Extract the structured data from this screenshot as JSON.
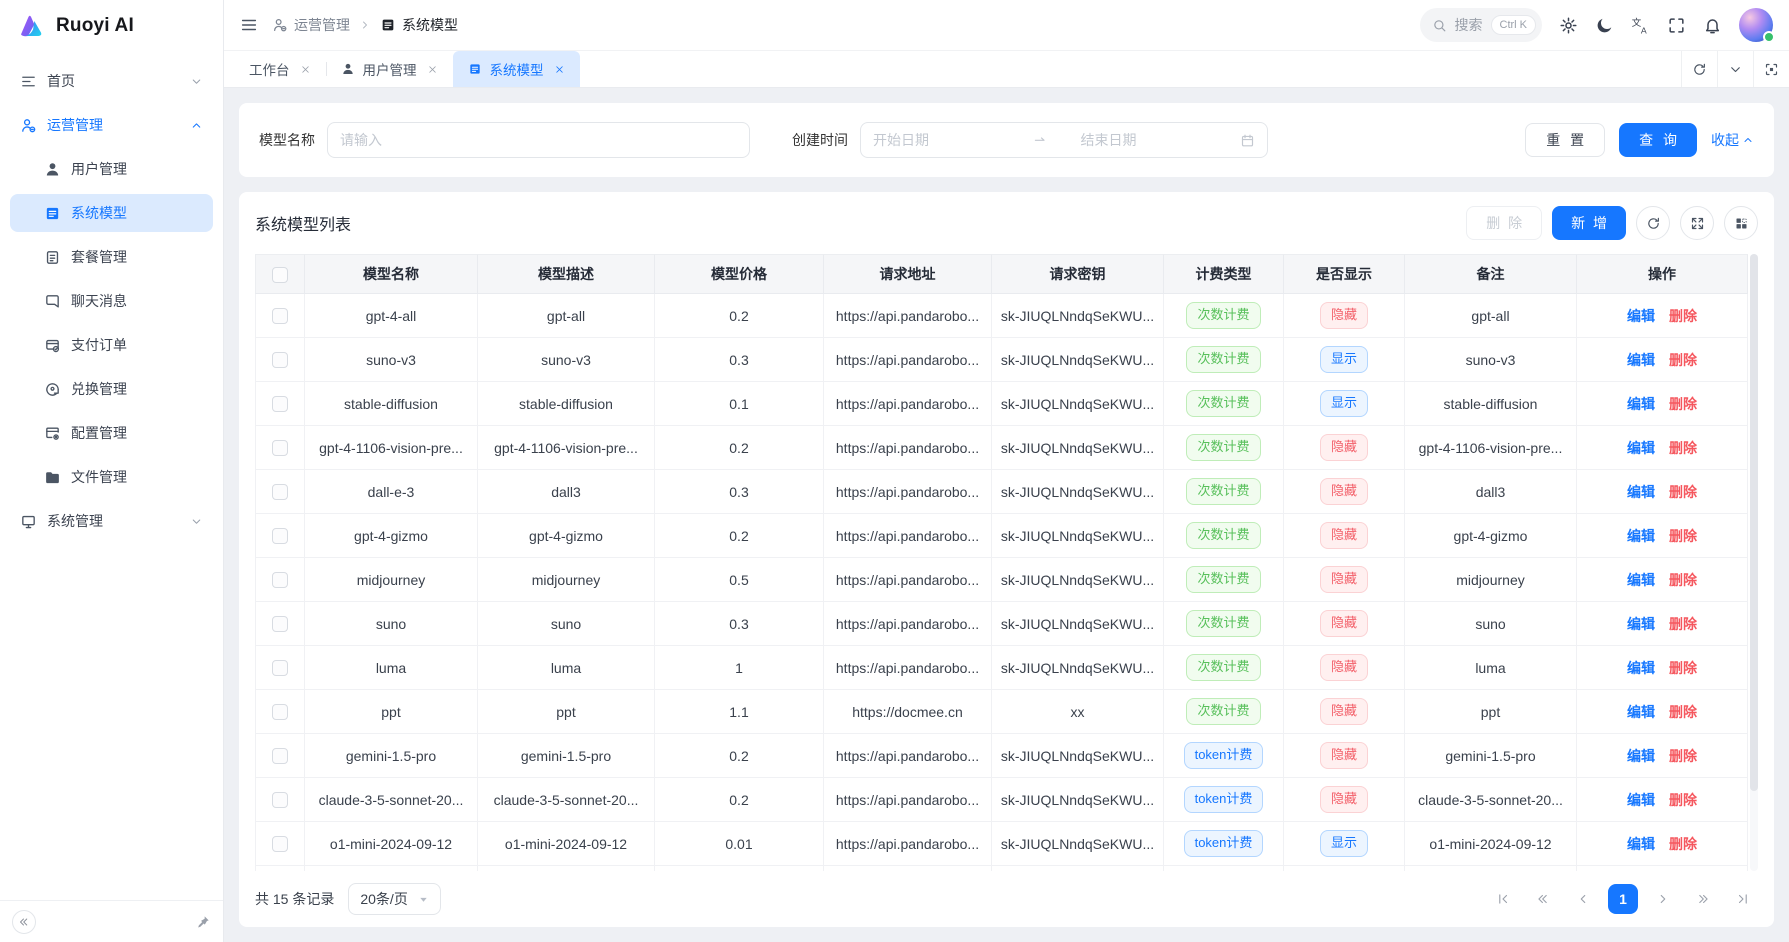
{
  "app": {
    "logo_text": "Ruoyi AI"
  },
  "header": {
    "breadcrumb": [
      {
        "label": "运营管理",
        "icon": "user-group-icon"
      },
      {
        "label": "系统模型",
        "icon": "list-icon"
      }
    ],
    "search": {
      "placeholder": "搜索",
      "shortcut": "Ctrl K"
    },
    "icons": [
      "settings-icon",
      "moon-icon",
      "translate-icon",
      "fullscreen-icon",
      "bell-icon"
    ]
  },
  "sidebar": {
    "items": [
      {
        "label": "首页",
        "icon": "menu-lines-icon",
        "chevron": "down"
      },
      {
        "label": "运营管理",
        "icon": "user-group-icon",
        "chevron": "up",
        "open": true,
        "children": [
          {
            "label": "用户管理",
            "icon": "user-icon"
          },
          {
            "label": "系统模型",
            "icon": "list-icon",
            "active": true
          },
          {
            "label": "套餐管理",
            "icon": "package-icon"
          },
          {
            "label": "聊天消息",
            "icon": "chat-icon"
          },
          {
            "label": "支付订单",
            "icon": "receipt-icon"
          },
          {
            "label": "兑换管理",
            "icon": "exchange-icon"
          },
          {
            "label": "配置管理",
            "icon": "config-icon"
          },
          {
            "label": "文件管理",
            "icon": "folder-icon"
          }
        ]
      },
      {
        "label": "系统管理",
        "icon": "monitor-icon",
        "chevron": "down"
      }
    ]
  },
  "tabs": [
    {
      "label": "工作台"
    },
    {
      "label": "用户管理",
      "icon": "user-icon"
    },
    {
      "label": "系统模型",
      "icon": "list-icon",
      "active": true
    }
  ],
  "filter": {
    "model_name_label": "模型名称",
    "model_name_placeholder": "请输入",
    "create_time_label": "创建时间",
    "date_start_placeholder": "开始日期",
    "date_end_placeholder": "结束日期",
    "reset_label": "重 置",
    "search_label": "查 询",
    "collapse_label": "收起"
  },
  "table": {
    "title": "系统模型列表",
    "delete_label": "删 除",
    "add_label": "新 增",
    "columns": [
      "模型名称",
      "模型描述",
      "模型价格",
      "请求地址",
      "请求密钥",
      "计费类型",
      "是否显示",
      "备注",
      "操作"
    ],
    "edit_label": "编辑",
    "delete_row_label": "删除",
    "rows": [
      {
        "name": "gpt-4-all",
        "desc": "gpt-all",
        "price": "0.2",
        "url": "https://api.pandarobo...",
        "key": "sk-JIUQLNndqSeKWU...",
        "billing": "次数计费",
        "billing_type": "count",
        "visible": "隐藏",
        "visible_type": "hidden",
        "remark": "gpt-all"
      },
      {
        "name": "suno-v3",
        "desc": "suno-v3",
        "price": "0.3",
        "url": "https://api.pandarobo...",
        "key": "sk-JIUQLNndqSeKWU...",
        "billing": "次数计费",
        "billing_type": "count",
        "visible": "显示",
        "visible_type": "shown",
        "remark": "suno-v3"
      },
      {
        "name": "stable-diffusion",
        "desc": "stable-diffusion",
        "price": "0.1",
        "url": "https://api.pandarobo...",
        "key": "sk-JIUQLNndqSeKWU...",
        "billing": "次数计费",
        "billing_type": "count",
        "visible": "显示",
        "visible_type": "shown",
        "remark": "stable-diffusion"
      },
      {
        "name": "gpt-4-1106-vision-pre...",
        "desc": "gpt-4-1106-vision-pre...",
        "price": "0.2",
        "url": "https://api.pandarobo...",
        "key": "sk-JIUQLNndqSeKWU...",
        "billing": "次数计费",
        "billing_type": "count",
        "visible": "隐藏",
        "visible_type": "hidden",
        "remark": "gpt-4-1106-vision-pre..."
      },
      {
        "name": "dall-e-3",
        "desc": "dall3",
        "price": "0.3",
        "url": "https://api.pandarobo...",
        "key": "sk-JIUQLNndqSeKWU...",
        "billing": "次数计费",
        "billing_type": "count",
        "visible": "隐藏",
        "visible_type": "hidden",
        "remark": "dall3"
      },
      {
        "name": "gpt-4-gizmo",
        "desc": "gpt-4-gizmo",
        "price": "0.2",
        "url": "https://api.pandarobo...",
        "key": "sk-JIUQLNndqSeKWU...",
        "billing": "次数计费",
        "billing_type": "count",
        "visible": "隐藏",
        "visible_type": "hidden",
        "remark": "gpt-4-gizmo"
      },
      {
        "name": "midjourney",
        "desc": "midjourney",
        "price": "0.5",
        "url": "https://api.pandarobo...",
        "key": "sk-JIUQLNndqSeKWU...",
        "billing": "次数计费",
        "billing_type": "count",
        "visible": "隐藏",
        "visible_type": "hidden",
        "remark": "midjourney"
      },
      {
        "name": "suno",
        "desc": "suno",
        "price": "0.3",
        "url": "https://api.pandarobo...",
        "key": "sk-JIUQLNndqSeKWU...",
        "billing": "次数计费",
        "billing_type": "count",
        "visible": "隐藏",
        "visible_type": "hidden",
        "remark": "suno"
      },
      {
        "name": "luma",
        "desc": "luma",
        "price": "1",
        "url": "https://api.pandarobo...",
        "key": "sk-JIUQLNndqSeKWU...",
        "billing": "次数计费",
        "billing_type": "count",
        "visible": "隐藏",
        "visible_type": "hidden",
        "remark": "luma"
      },
      {
        "name": "ppt",
        "desc": "ppt",
        "price": "1.1",
        "url": "https://docmee.cn",
        "key": "xx",
        "billing": "次数计费",
        "billing_type": "count",
        "visible": "隐藏",
        "visible_type": "hidden",
        "remark": "ppt"
      },
      {
        "name": "gemini-1.5-pro",
        "desc": "gemini-1.5-pro",
        "price": "0.2",
        "url": "https://api.pandarobo...",
        "key": "sk-JIUQLNndqSeKWU...",
        "billing": "token计费",
        "billing_type": "token",
        "visible": "隐藏",
        "visible_type": "hidden",
        "remark": "gemini-1.5-pro"
      },
      {
        "name": "claude-3-5-sonnet-20...",
        "desc": "claude-3-5-sonnet-20...",
        "price": "0.2",
        "url": "https://api.pandarobo...",
        "key": "sk-JIUQLNndqSeKWU...",
        "billing": "token计费",
        "billing_type": "token",
        "visible": "隐藏",
        "visible_type": "hidden",
        "remark": "claude-3-5-sonnet-20..."
      },
      {
        "name": "o1-mini-2024-09-12",
        "desc": "o1-mini-2024-09-12",
        "price": "0.01",
        "url": "https://api.pandarobo...",
        "key": "sk-JIUQLNndqSeKWU...",
        "billing": "token计费",
        "billing_type": "token",
        "visible": "显示",
        "visible_type": "shown",
        "remark": "o1-mini-2024-09-12"
      },
      {
        "partial": true
      }
    ]
  },
  "pagination": {
    "total": "共 15 条记录",
    "page_size": "20条/页",
    "current_page": "1"
  },
  "colors": {
    "primary": "#1677ff",
    "active_tab_bg": "#dbeaff",
    "badge_green_text": "#58c05b",
    "badge_red_text": "#f3606a",
    "badge_blue_text": "#1677ff",
    "content_bg": "#eef0f4"
  }
}
